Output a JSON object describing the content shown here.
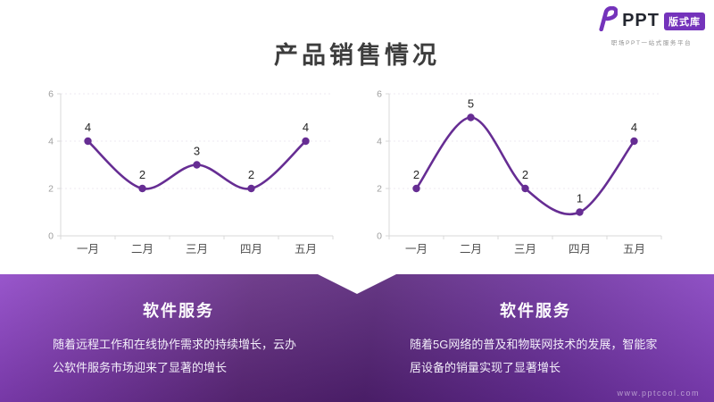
{
  "logo": {
    "brand": "PPT",
    "badge": "版式库",
    "tagline": "职场PPT一站式服务平台"
  },
  "title": "产品销售情况",
  "chart_data": [
    {
      "type": "line",
      "title": "",
      "categories": [
        "一月",
        "二月",
        "三月",
        "四月",
        "五月"
      ],
      "values": [
        4,
        2,
        3,
        2,
        4
      ],
      "data_labels": [
        4,
        2,
        3,
        2,
        4
      ],
      "ylim": [
        0,
        6
      ],
      "yticks": [
        0,
        2,
        4,
        6
      ],
      "grid": true,
      "smooth": true,
      "marker": "circle",
      "legend": "none"
    },
    {
      "type": "line",
      "title": "",
      "categories": [
        "一月",
        "二月",
        "三月",
        "四月",
        "五月"
      ],
      "values": [
        2,
        5,
        2,
        1,
        4
      ],
      "data_labels": [
        2,
        5,
        2,
        1,
        4
      ],
      "ylim": [
        0,
        6
      ],
      "yticks": [
        0,
        2,
        4,
        6
      ],
      "grid": true,
      "smooth": true,
      "marker": "circle",
      "legend": "none"
    }
  ],
  "panels": [
    {
      "title": "软件服务",
      "body": "随着远程工作和在线协作需求的持续增长，云办公软件服务市场迎来了显著的增长"
    },
    {
      "title": "软件服务",
      "body": "随着5G网络的普及和物联网技术的发展，智能家居设备的销量实现了显著增长"
    }
  ],
  "watermark": "www.pptcool.com",
  "colors": {
    "accent": "#662d93",
    "logo_purple": "#7433bb",
    "band_light": "#8d43c6",
    "band_dark": "#552277",
    "axis": "#d9d9d9",
    "grid": "#eeeaf2",
    "tick_label": "#9e9e9e",
    "x_label": "#4d4d4d",
    "data_label": "#262626",
    "title_text": "#3d3d3d"
  }
}
